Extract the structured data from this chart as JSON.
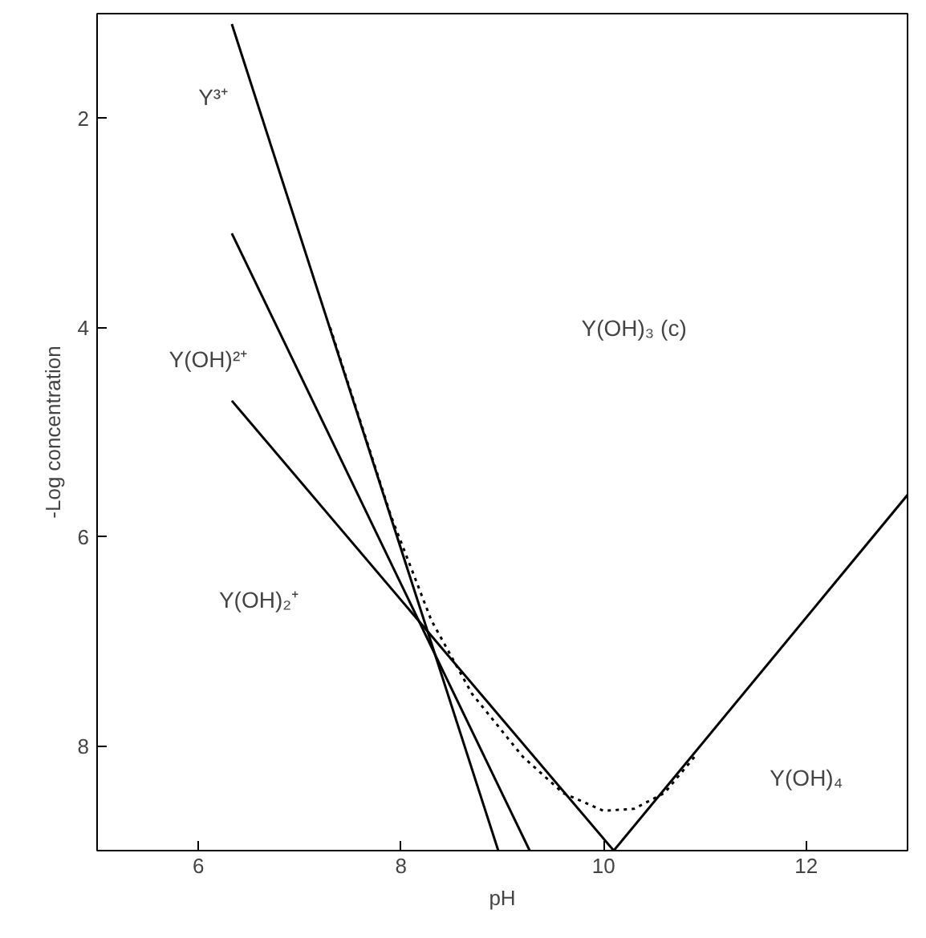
{
  "chart_data": {
    "type": "line",
    "xlabel": "pH",
    "ylabel": "-Log concentration",
    "xlim": [
      5,
      13
    ],
    "ylim": [
      9,
      1
    ],
    "xticks": [
      6,
      8,
      10,
      12
    ],
    "yticks": [
      2,
      4,
      6,
      8
    ],
    "grid": false,
    "marker": "none",
    "series": [
      {
        "color": "#000000",
        "x": [
          6.33,
          8.96
        ],
        "values": [
          1.1,
          9.0
        ]
      },
      {
        "color": "#000000",
        "x": [
          6.33,
          9.27
        ],
        "values": [
          3.1,
          9.0
        ]
      },
      {
        "color": "#000000",
        "x": [
          6.33,
          10.1
        ],
        "values": [
          4.7,
          9.0
        ]
      },
      {
        "color": "#000000",
        "x": [
          10.1,
          13.0
        ],
        "values": [
          9.0,
          5.6
        ]
      },
      {
        "color": "#000000",
        "line_style": "dotted",
        "x": [
          7.3,
          7.6,
          7.9,
          8.3,
          8.7,
          9.2,
          9.6,
          10.0,
          10.3,
          10.6,
          10.9
        ],
        "values": [
          4.0,
          4.9,
          5.8,
          6.8,
          7.5,
          8.1,
          8.45,
          8.62,
          8.6,
          8.45,
          8.1
        ]
      }
    ],
    "annotations": [
      "Y³⁺",
      "Y(OH)²⁺",
      "Y(OH)₂⁺",
      "Y(OH)₃ (c)",
      "Y(OH)₄"
    ]
  }
}
